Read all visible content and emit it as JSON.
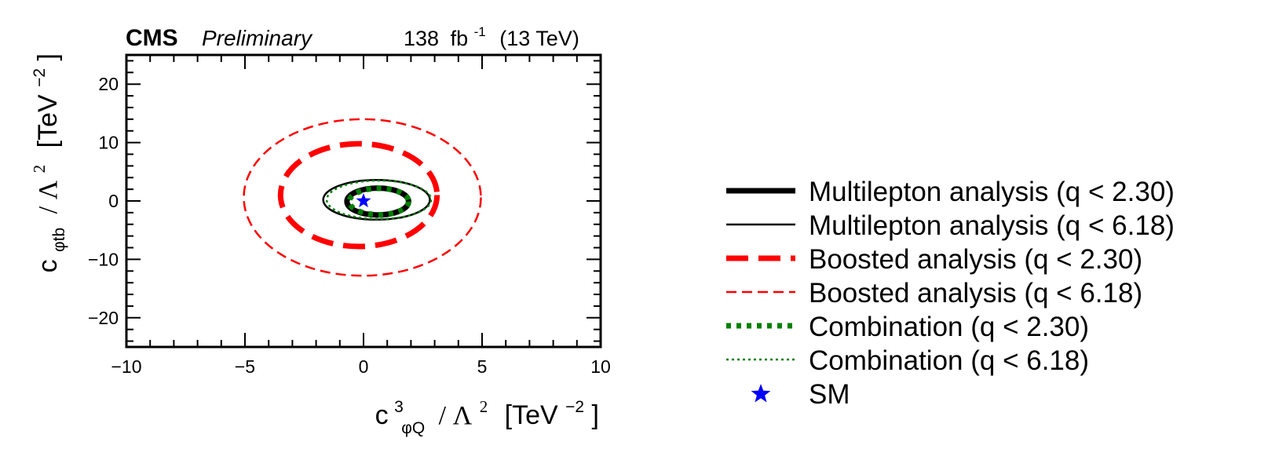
{
  "header": {
    "experiment": "CMS",
    "status": "Preliminary",
    "luminosity": "138",
    "lumi_unit": "fb",
    "lumi_exp": "-1",
    "energy": "(13 TeV)"
  },
  "axes": {
    "xlabel": {
      "c": "c",
      "sub": "φQ",
      "sup": "3",
      "lambda": "/ Λ",
      "lsup": "2",
      "unit": "[TeV",
      "usup": "−2",
      "close": "]"
    },
    "ylabel": {
      "c": "c",
      "sub": "φtb",
      "lambda": "/ Λ",
      "lsup": "2",
      "unit": "[TeV",
      "usup": "−2",
      "close": "]"
    }
  },
  "chart_data": {
    "type": "contour",
    "xlim": [
      -10,
      10
    ],
    "ylim": [
      -25,
      25
    ],
    "xticks": [
      -10,
      -5,
      0,
      5,
      10
    ],
    "xtick_labels": [
      "−10",
      "−5",
      "0",
      "5",
      "10"
    ],
    "yticks": [
      -20,
      -10,
      0,
      10,
      20
    ],
    "ytick_labels": [
      "−20",
      "−10",
      "0",
      "10",
      "20"
    ],
    "legend_position": "right",
    "series": [
      {
        "name": "Multilepton analysis (q < 2.30)",
        "color": "#000000",
        "style": "solid-thick",
        "ellipse": {
          "cx": 0.6,
          "cy": -0.1,
          "rx": 1.3,
          "ry": 2.3
        }
      },
      {
        "name": "Multilepton analysis (q < 6.18)",
        "color": "#000000",
        "style": "solid-thin",
        "ellipse": {
          "cx": 0.55,
          "cy": 0.2,
          "rx": 2.25,
          "ry": 3.4
        }
      },
      {
        "name": "Boosted analysis (q < 2.30)",
        "color": "#ff0000",
        "style": "dashed-thick",
        "ellipse": {
          "cx": -0.2,
          "cy": 1.0,
          "rx": 3.3,
          "ry": 8.8
        }
      },
      {
        "name": "Boosted analysis (q < 6.18)",
        "color": "#ff0000",
        "style": "dashed-thin",
        "ellipse": {
          "cx": -0.05,
          "cy": 0.6,
          "rx": 5.0,
          "ry": 13.4
        }
      },
      {
        "name": "Combination (q < 2.30)",
        "color": "#008000",
        "style": "dotted-thick",
        "ellipse": {
          "cx": 0.65,
          "cy": -0.1,
          "rx": 1.25,
          "ry": 2.25
        }
      },
      {
        "name": "Combination (q < 6.18)",
        "color": "#008000",
        "style": "dotted-thin",
        "ellipse": {
          "cx": 0.65,
          "cy": 0.2,
          "rx": 2.2,
          "ry": 3.3
        }
      },
      {
        "name": "SM",
        "color": "#0000ff",
        "style": "star-marker",
        "point": {
          "x": 0,
          "y": 0
        }
      }
    ]
  }
}
